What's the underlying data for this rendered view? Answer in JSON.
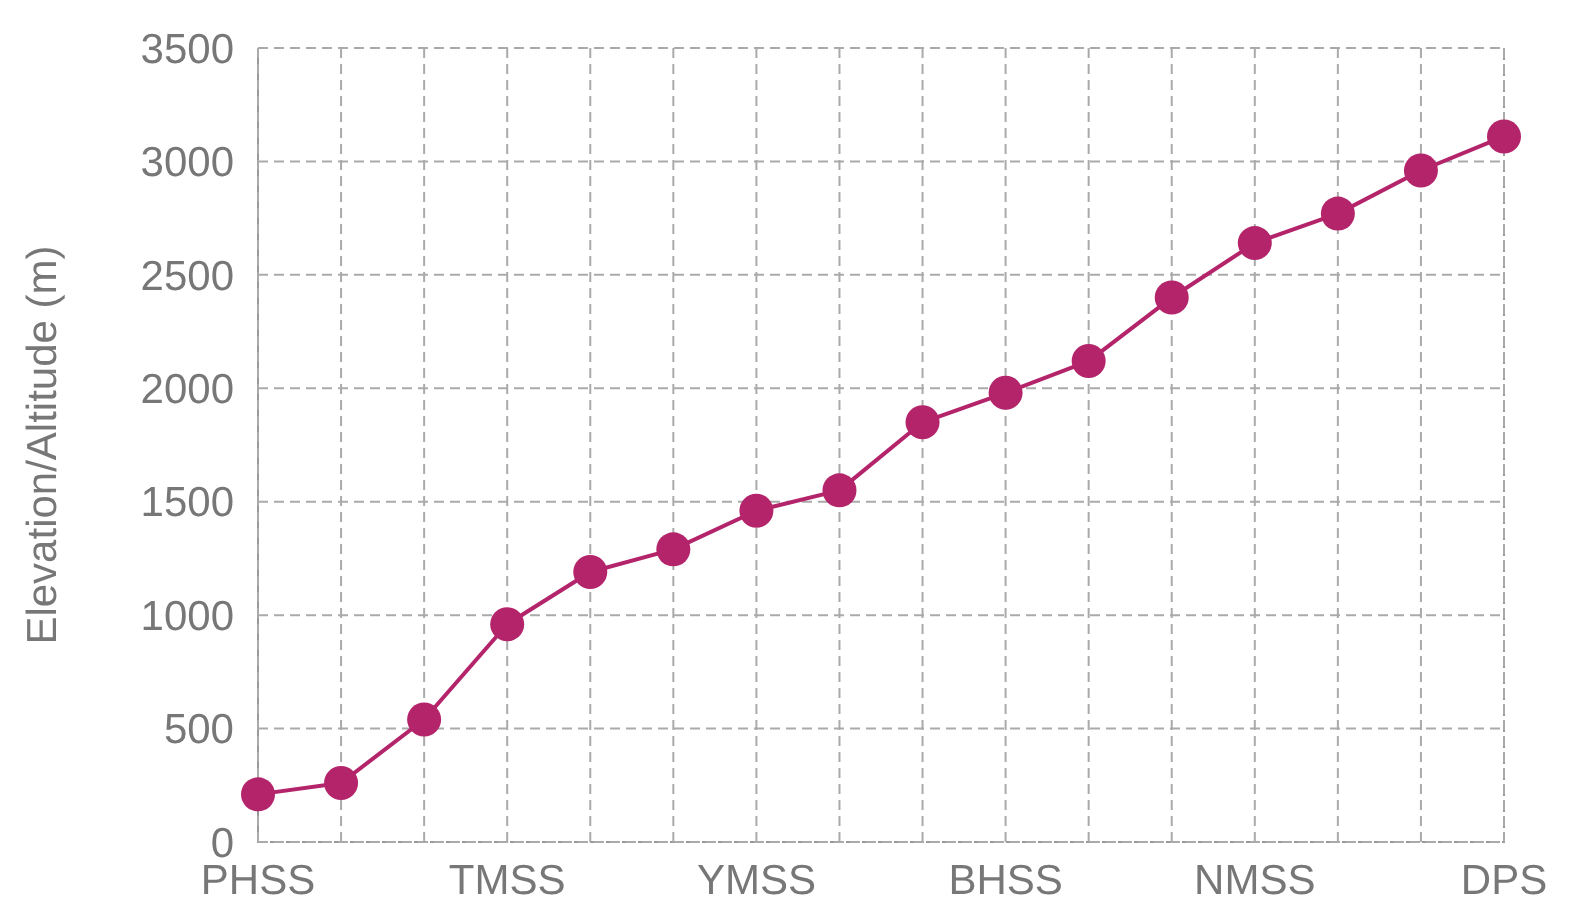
{
  "chart_data": {
    "type": "line",
    "ylabel": "Elevation/Altitude (m)",
    "categories": [
      "PHSS",
      null,
      null,
      "TMSS",
      null,
      null,
      "YMSS",
      null,
      null,
      "BHSS",
      null,
      null,
      "NMSS",
      null,
      null,
      "DPS"
    ],
    "series": [
      {
        "color": "#b3246b",
        "values": [
          210,
          260,
          540,
          960,
          1190,
          1290,
          1460,
          1550,
          1850,
          1980,
          2120,
          2400,
          2640,
          2770,
          2960,
          3110
        ]
      }
    ],
    "ylim": [
      0,
      3500
    ],
    "yticks": [
      0,
      500,
      1000,
      1500,
      2000,
      2500,
      3000,
      3500
    ],
    "grid": true,
    "marker": "circle"
  }
}
